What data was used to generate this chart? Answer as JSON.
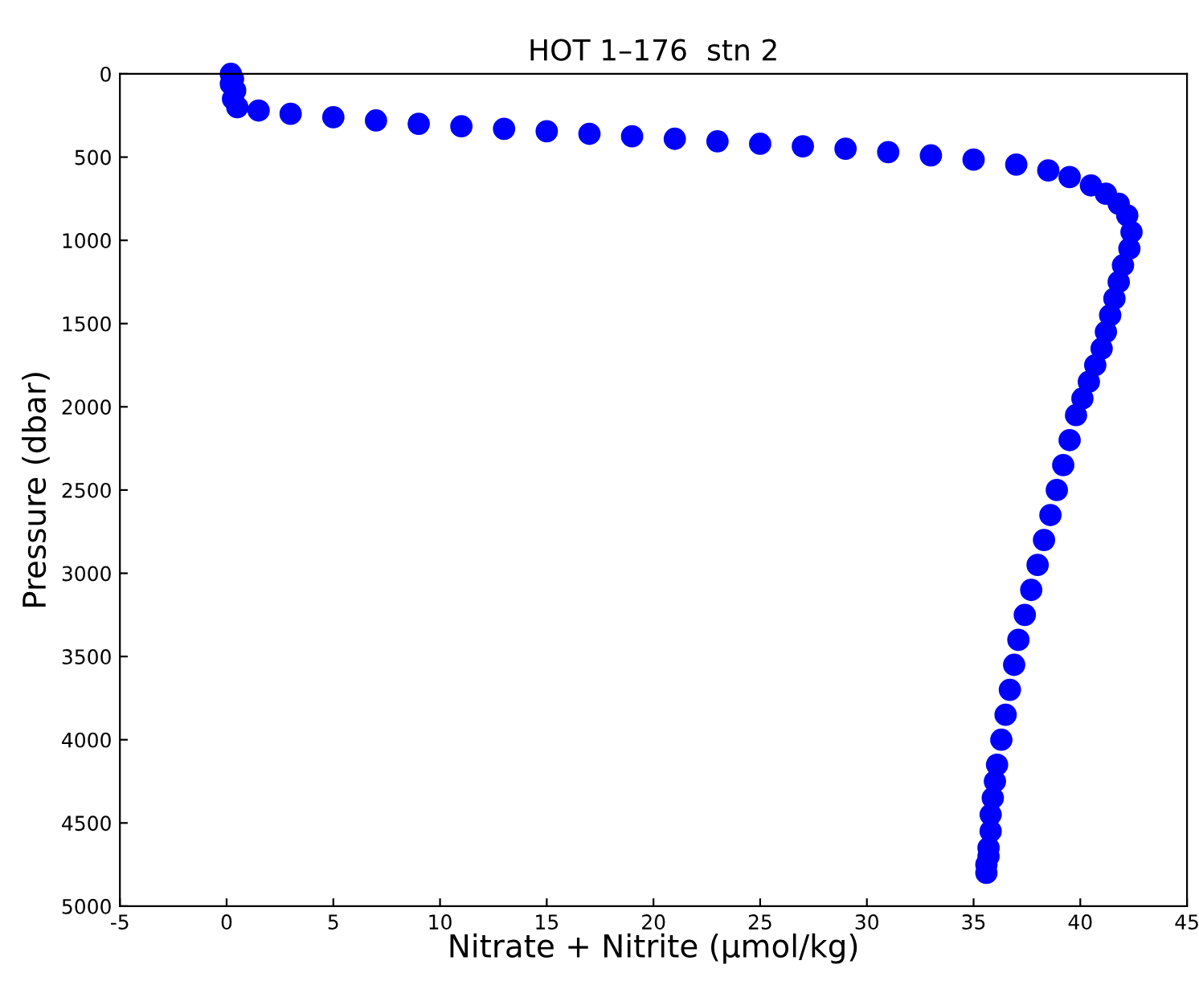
{
  "chart_data": {
    "type": "scatter",
    "title": "HOT 1–176  stn 2",
    "xlabel": "Nitrate + Nitrite (μmol/kg)",
    "ylabel": "Pressure (dbar)",
    "x": [
      0.2,
      0.3,
      0.2,
      0.4,
      0.3,
      0.5,
      1.5,
      3,
      5,
      7,
      9,
      11,
      13,
      15,
      17,
      19,
      21,
      23,
      25,
      27,
      29,
      31,
      33,
      35,
      37,
      38.5,
      39.5,
      40.5,
      41.2,
      41.8,
      42.2,
      42.4,
      42.3,
      42.0,
      41.8,
      41.6,
      41.4,
      41.2,
      41.0,
      40.7,
      40.4,
      40.1,
      39.8,
      39.5,
      39.2,
      38.9,
      38.6,
      38.3,
      38.0,
      37.7,
      37.4,
      37.1,
      36.9,
      36.7,
      36.5,
      36.3,
      36.1,
      36.0,
      35.9,
      35.8,
      35.8,
      35.7,
      35.7,
      35.6,
      35.6
    ],
    "values": [
      0,
      30,
      60,
      100,
      150,
      200,
      220,
      240,
      260,
      280,
      300,
      315,
      330,
      345,
      360,
      375,
      390,
      405,
      420,
      435,
      450,
      470,
      490,
      515,
      545,
      580,
      620,
      670,
      720,
      780,
      850,
      950,
      1050,
      1150,
      1250,
      1350,
      1450,
      1550,
      1650,
      1750,
      1850,
      1950,
      2050,
      2200,
      2350,
      2500,
      2650,
      2800,
      2950,
      3100,
      3250,
      3400,
      3550,
      3700,
      3850,
      4000,
      4150,
      4250,
      4350,
      4450,
      4550,
      4650,
      4700,
      4750,
      4800
    ],
    "color": "#0000ff",
    "marker": "circle",
    "xlim": [
      -5,
      45
    ],
    "xticks": [
      -5,
      0,
      5,
      10,
      15,
      20,
      25,
      30,
      35,
      40,
      45
    ],
    "ylim": [
      5000,
      0
    ],
    "yticks": [
      0,
      500,
      1000,
      1500,
      2000,
      2500,
      3000,
      3500,
      4000,
      4500,
      5000
    ],
    "grid": false
  }
}
